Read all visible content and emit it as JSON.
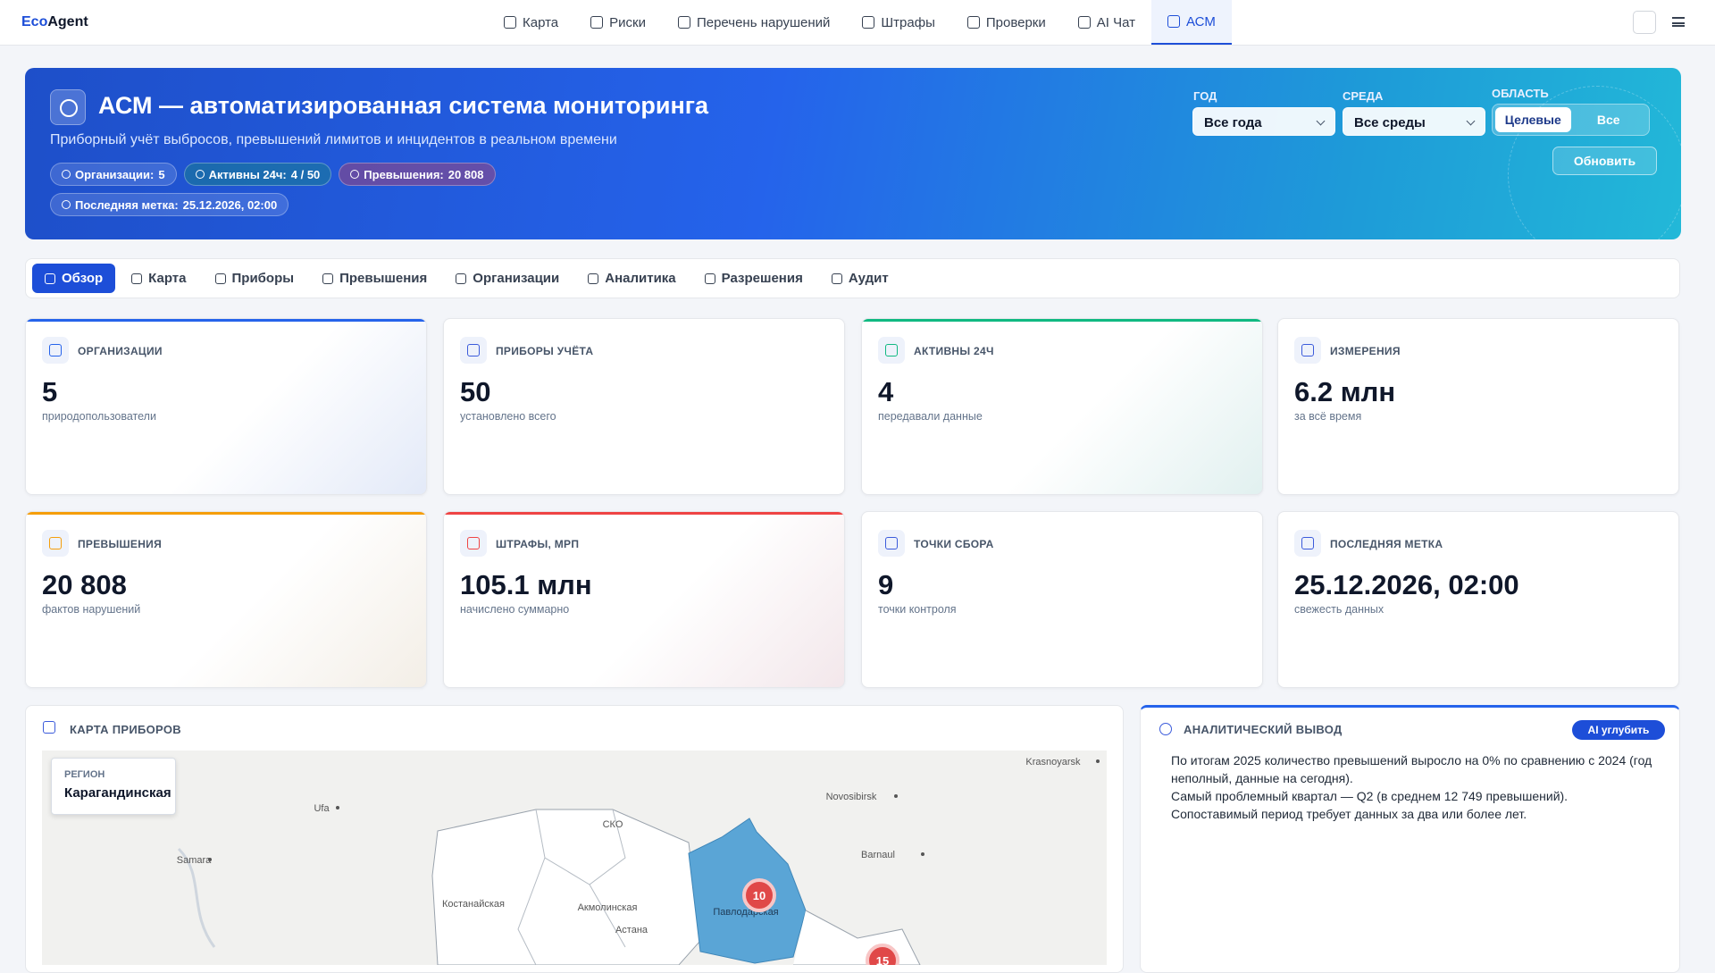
{
  "brand": {
    "prefix": "Eco",
    "suffix": "Agent"
  },
  "nav": [
    "Карта",
    "Риски",
    "Перечень нарушений",
    "Штрафы",
    "Проверки",
    "AI Чат",
    "АСМ"
  ],
  "nav_active": 6,
  "hero": {
    "title": "АСМ — автоматизированная система мониторинга",
    "subtitle": "Приборный учёт выбросов, превышений лимитов и инцидентов в реальном времени",
    "chips": [
      {
        "label": "Организации:",
        "value": "5"
      },
      {
        "label": "Активны 24ч:",
        "value": "4 / 50"
      },
      {
        "label": "Превышения:",
        "value": "20 808"
      },
      {
        "label": "Последняя метка:",
        "value": "25.12.2026, 02:00"
      }
    ],
    "filters": {
      "year_label": "ГОД",
      "year_value": "Все года",
      "env_label": "СРЕДА",
      "env_value": "Все среды",
      "scope_label": "ОБЛАСТЬ",
      "scope_options": [
        "Целевые",
        "Все"
      ],
      "refresh": "Обновить"
    }
  },
  "tabs": [
    "Обзор",
    "Карта",
    "Приборы",
    "Превышения",
    "Организации",
    "Аналитика",
    "Разрешения",
    "Аудит"
  ],
  "tab_active": 0,
  "cards": [
    {
      "label": "ОРГАНИЗАЦИИ",
      "value": "5",
      "sub": "природопользователи",
      "accent": "#2563eb"
    },
    {
      "label": "ПРИБОРЫ УЧЁТА",
      "value": "50",
      "sub": "установлено всего",
      "accent": null
    },
    {
      "label": "АКТИВНЫ 24Ч",
      "value": "4",
      "sub": "передавали данные",
      "accent": "#10b981"
    },
    {
      "label": "ИЗМЕРЕНИЯ",
      "value": "6.2 млн",
      "sub": "за всё время",
      "accent": null
    },
    {
      "label": "ПРЕВЫШЕНИЯ",
      "value": "20 808",
      "sub": "фактов нарушений",
      "accent": "#f59e0b"
    },
    {
      "label": "ШТРАФЫ, МРП",
      "value": "105.1 млн",
      "sub": "начислено суммарно",
      "accent": "#ef4444"
    },
    {
      "label": "ТОЧКИ СБОРА",
      "value": "9",
      "sub": "точки контроля",
      "accent": null
    },
    {
      "label": "ПОСЛЕДНЯЯ МЕТКА",
      "value": "25.12.2026, 02:00",
      "sub": "свежесть данных",
      "accent": null
    }
  ],
  "map": {
    "title": "КАРТА ПРИБОРОВ",
    "region_label": "РЕГИОН",
    "region_value": "Карагандинская",
    "labels": [
      "Krasnoyarsk",
      "Novosibirsk",
      "Barnaul",
      "Ufa",
      "Samara",
      "СКО",
      "Костанайская",
      "Акмолинская",
      "Павлодарская",
      "Астана"
    ],
    "clusters": [
      "10",
      "15"
    ]
  },
  "analytics": {
    "title": "АНАЛИТИЧЕСКИЙ ВЫВОД",
    "button": "AI углубить",
    "lines": [
      "По итогам 2025 количество превышений выросло на 0% по сравнению с 2024 (год",
      "неполный, данные на сегодня).",
      "Самый проблемный квартал — Q2 (в среднем 12 749 превышений).",
      "Сопоставимый период требует данных за два или более лет."
    ]
  }
}
